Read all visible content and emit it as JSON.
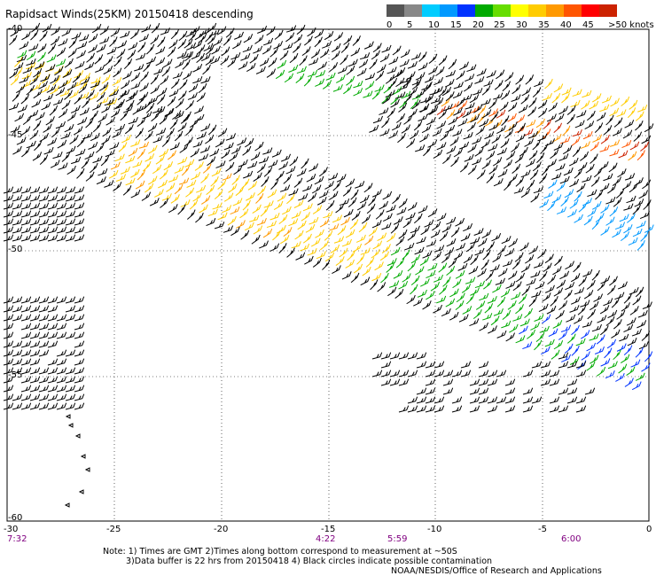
{
  "title": "Rapidsact Winds(25KM) 20150418 descending",
  "legend": {
    "colors": [
      "#555555",
      "#888888",
      "#00ccff",
      "#0099ff",
      "#0033ff",
      "#00aa00",
      "#66dd00",
      "#ffff00",
      "#ffcc00",
      "#ff9900",
      "#ff5500",
      "#ff0000",
      "#cc2200",
      "#996633",
      "#cc00cc",
      "#8800cc",
      "#440099"
    ],
    "labels": [
      "0",
      "5",
      "10",
      "15",
      "20",
      "25",
      "30",
      "35",
      "40",
      "45",
      ">50 knots"
    ]
  },
  "y_axis": [
    "-40",
    "-45",
    "-50",
    "-55",
    "-60"
  ],
  "x_axis": [
    "-30",
    "-25",
    "-20",
    "-15",
    "-10",
    "-5",
    "0"
  ],
  "times": [
    "7:32",
    "4:22",
    "5:59",
    "6:00"
  ],
  "notes": {
    "line1": "Note: 1) Times are GMT 2)Times along bottom correspond to measurement at ~50S",
    "line2": "3)Data buffer is 22 hrs from 20150418 4) Black circles indicate possible contamination",
    "credit": "NOAA/NESDIS/Office of Research and Applications"
  }
}
